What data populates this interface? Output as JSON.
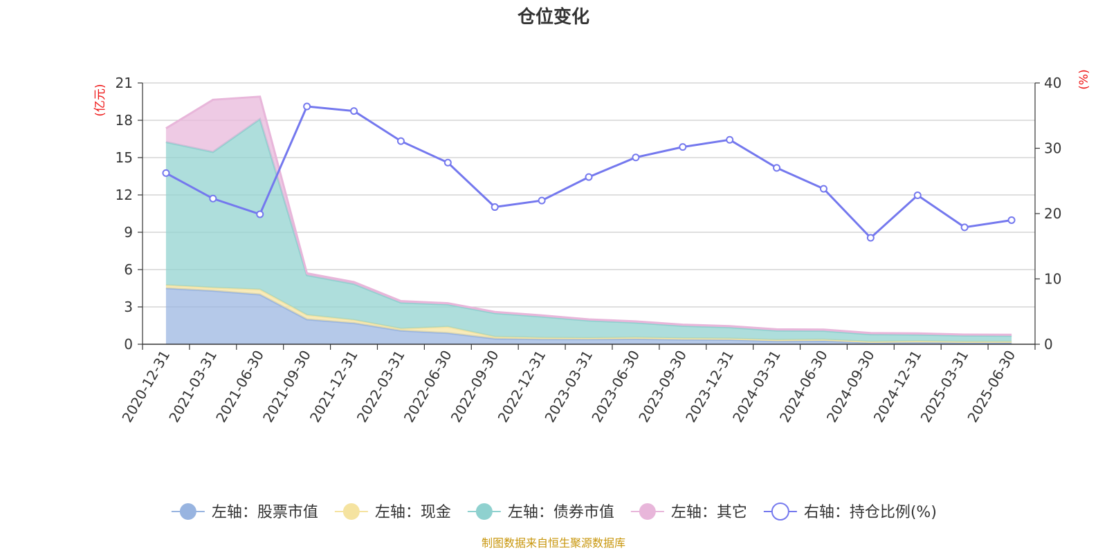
{
  "chart_data": {
    "type": "area",
    "title": "仓位变化",
    "left_axis_unit": "(亿元)",
    "right_axis_unit": "(%)",
    "left_ylim": [
      0,
      21
    ],
    "left_ticks": [
      0,
      3,
      6,
      9,
      12,
      15,
      18,
      21
    ],
    "right_ylim": [
      0,
      40
    ],
    "right_ticks": [
      0,
      10,
      20,
      30,
      40
    ],
    "grid": true,
    "legend_position": "bottom",
    "categories": [
      "2020-12-31",
      "2021-03-31",
      "2021-06-30",
      "2021-09-30",
      "2021-12-31",
      "2022-03-31",
      "2022-06-30",
      "2022-09-30",
      "2022-12-31",
      "2023-03-31",
      "2023-06-30",
      "2023-09-30",
      "2023-12-31",
      "2024-03-31",
      "2024-06-30",
      "2024-09-30",
      "2024-12-31",
      "2025-03-31",
      "2025-06-30"
    ],
    "series": [
      {
        "name": "左轴：股票市值",
        "axis": "left",
        "type": "stacked-area",
        "color": "#98b4e0",
        "values": [
          4.5,
          4.3,
          4.0,
          2.0,
          1.7,
          1.1,
          0.9,
          0.45,
          0.4,
          0.4,
          0.42,
          0.38,
          0.36,
          0.25,
          0.28,
          0.12,
          0.15,
          0.12,
          0.13
        ]
      },
      {
        "name": "左轴：现金",
        "axis": "left",
        "type": "stacked-area",
        "color": "#f5e3a0",
        "values": [
          0.25,
          0.25,
          0.4,
          0.35,
          0.25,
          0.15,
          0.5,
          0.15,
          0.12,
          0.1,
          0.12,
          0.1,
          0.1,
          0.1,
          0.1,
          0.08,
          0.1,
          0.08,
          0.08
        ]
      },
      {
        "name": "左轴：债券市值",
        "axis": "left",
        "type": "stacked-area",
        "color": "#8fd1cf",
        "values": [
          11.5,
          10.9,
          13.7,
          3.2,
          2.9,
          2.1,
          1.8,
          1.9,
          1.7,
          1.4,
          1.2,
          1.0,
          0.9,
          0.75,
          0.7,
          0.6,
          0.52,
          0.5,
          0.47
        ]
      },
      {
        "name": "左轴：其它",
        "axis": "left",
        "type": "stacked-area",
        "color": "#e8b6da",
        "values": [
          1.1,
          4.2,
          1.8,
          0.15,
          0.15,
          0.12,
          0.1,
          0.1,
          0.1,
          0.1,
          0.1,
          0.1,
          0.1,
          0.1,
          0.1,
          0.1,
          0.1,
          0.08,
          0.08
        ]
      },
      {
        "name": "右轴：持仓比例(%)",
        "axis": "right",
        "type": "line",
        "color": "#7478ee",
        "values": [
          26.2,
          22.3,
          19.9,
          36.4,
          35.7,
          31.1,
          27.8,
          21.0,
          22.0,
          25.6,
          28.6,
          30.2,
          31.3,
          27.0,
          23.8,
          16.3,
          22.8,
          17.9,
          19.0
        ]
      }
    ],
    "source_note": "制图数据来自恒生聚源数据库"
  }
}
